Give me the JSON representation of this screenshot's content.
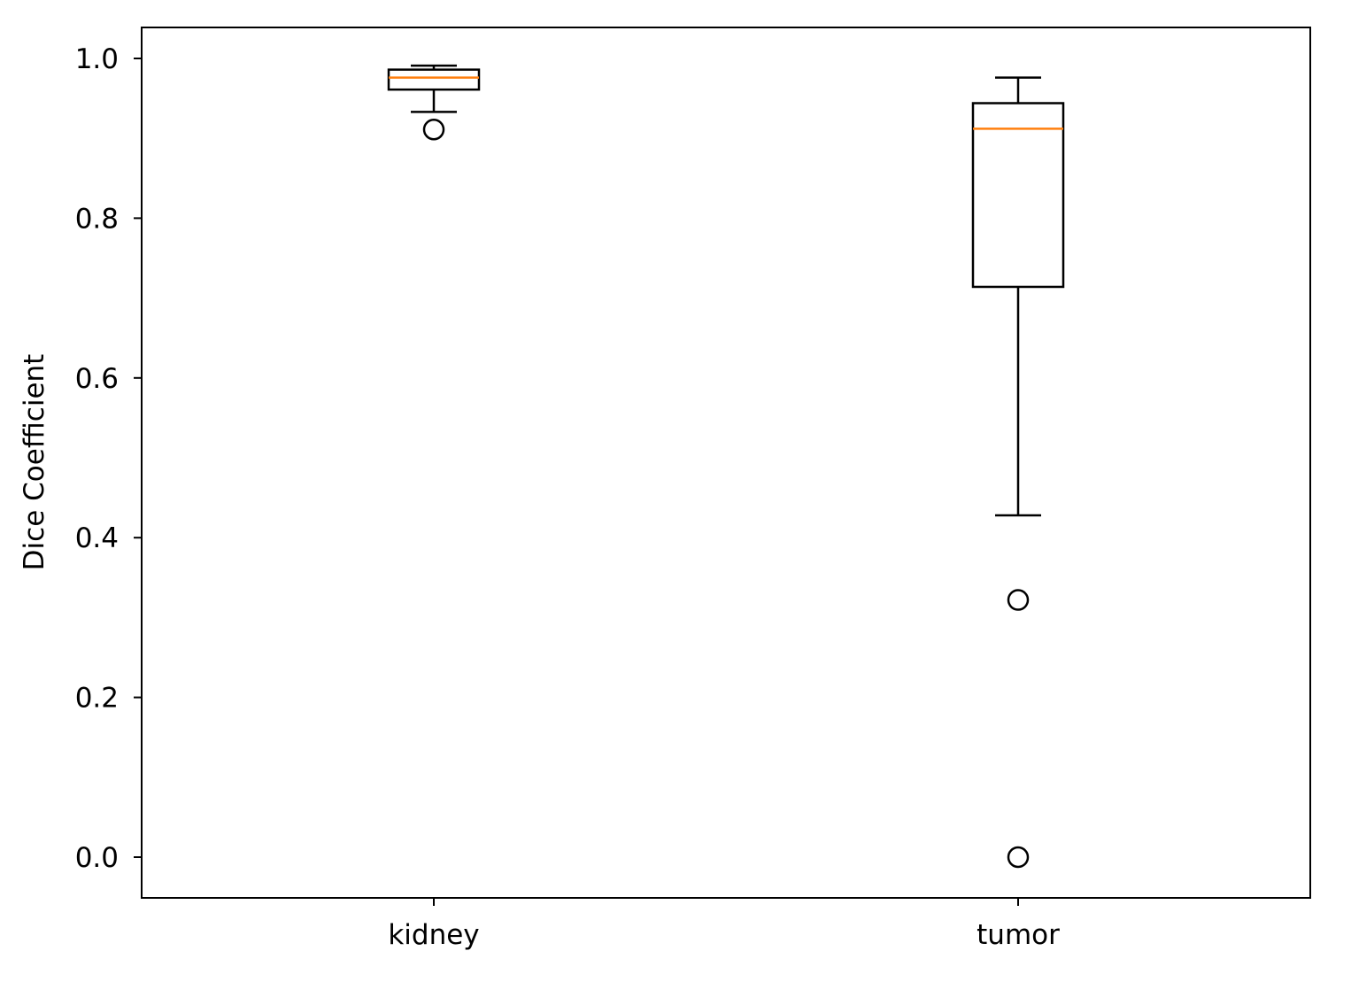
{
  "chart_data": {
    "type": "boxplot",
    "title": "",
    "xlabel": "",
    "ylabel": "Dice Coefficient",
    "ylim": [
      -0.05,
      1.035
    ],
    "yticks": [
      {
        "value": 0.0,
        "label": "0.0"
      },
      {
        "value": 0.2,
        "label": "0.2"
      },
      {
        "value": 0.4,
        "label": "0.4"
      },
      {
        "value": 0.6,
        "label": "0.6"
      },
      {
        "value": 0.8,
        "label": "0.8"
      },
      {
        "value": 1.0,
        "label": "1.0"
      }
    ],
    "grid": false,
    "categories": [
      "kidney",
      "tumor"
    ],
    "boxes": [
      {
        "category": "kidney",
        "whisker_low": 0.933,
        "q1": 0.961,
        "median": 0.976,
        "q3": 0.986,
        "whisker_high": 0.991,
        "outliers": [
          0.911
        ]
      },
      {
        "category": "tumor",
        "whisker_low": 0.428,
        "q1": 0.714,
        "median": 0.912,
        "q3": 0.944,
        "whisker_high": 0.976,
        "outliers": [
          0.322,
          0.0
        ]
      }
    ],
    "colors": {
      "box": "#000000",
      "median": "#ff7f0e",
      "outlier": "#000000"
    }
  }
}
